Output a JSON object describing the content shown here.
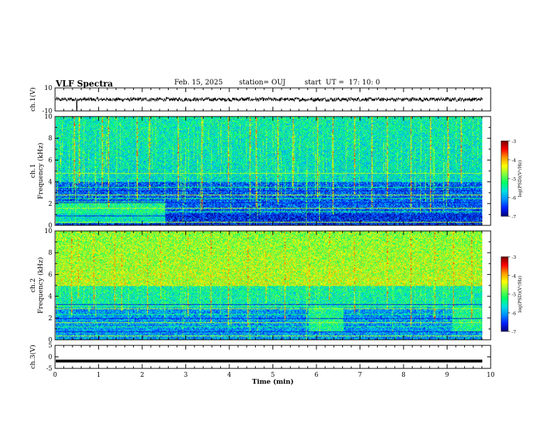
{
  "header": {
    "title": "VLF Spectra",
    "date": "Feb. 15, 2025",
    "station": "station= OUJ",
    "start": "start  UT =  17: 10: 0"
  },
  "colorbar": {
    "label": "log(PSD)(V²/Hz)",
    "ticks": [
      "-3",
      "-4",
      "-5",
      "-6",
      "-7"
    ],
    "colors": [
      "#7a0000",
      "#ff0000",
      "#ff9a00",
      "#ffff00",
      "#7fff3f",
      "#00ff66",
      "#00e0e0",
      "#0090ff",
      "#0020ff",
      "#00007a"
    ]
  },
  "chart_data": [
    {
      "type": "line",
      "panel": "ch.1 waveform",
      "ylabel": "ch.1(V)",
      "yticks": [
        "10",
        "-10"
      ],
      "ylim": [
        -10,
        10
      ],
      "xlim": [
        0,
        10
      ],
      "trace": "noisy signal centered near 0 V, amplitude about ±2 V, one spike to about -10 V near 0.5 min",
      "color": "#000000"
    },
    {
      "type": "heatmap",
      "panel": "ch.1 spectrogram",
      "ylabel": "ch.1\nFrequency (kHz)",
      "yticks": [
        "0",
        "2",
        "4",
        "6",
        "8",
        "10"
      ],
      "ylim": [
        0,
        10
      ],
      "xlim": [
        0,
        9.8
      ],
      "clim": [
        -7,
        -3
      ],
      "z_levels": {
        "below_4kHz": -6.3,
        "4_to_10kHz": -5.6,
        "0_to_2kHz_first_2.5min": -5.3
      },
      "horizontal_lines_kHz": [
        0.3,
        0.9,
        1.3,
        1.6,
        2.1,
        2.5,
        2.8,
        3.2,
        3.5,
        4.8
      ],
      "vertical_burst_min": [
        0.42,
        0.53,
        1.05,
        1.2,
        1.85,
        2.15,
        2.8,
        3.35,
        3.95,
        4.45,
        4.6,
        5.1,
        5.45,
        6.0,
        6.35,
        6.85,
        7.25,
        7.6,
        8.15,
        8.6,
        9.0,
        9.3
      ]
    },
    {
      "type": "heatmap",
      "panel": "ch.2 spectrogram",
      "ylabel": "ch.2\nFrequency (kHz)",
      "yticks": [
        "0",
        "2",
        "4",
        "6",
        "8",
        "10"
      ],
      "ylim": [
        0,
        10
      ],
      "xlim": [
        0,
        9.8
      ],
      "clim": [
        -7,
        -3
      ],
      "z_levels": {
        "below_3kHz": -6.0,
        "3_to_5kHz": -5.4,
        "5_to_10kHz": -4.5,
        "1_to_3kHz_5.8to6.6min_and_9.1to9.8min": -5.3
      },
      "horizontal_lines_kHz": [
        0.4,
        0.8,
        1.2,
        1.6,
        2.0,
        2.4,
        2.9,
        3.3,
        4.5
      ],
      "vertical_burst_min": [
        0.35,
        0.52,
        0.87,
        1.35,
        1.5,
        2.1,
        2.4,
        3.02,
        3.55,
        3.95,
        4.4,
        4.82,
        5.25,
        5.82,
        6.27,
        6.85,
        7.6,
        8.15,
        8.7,
        9.12,
        9.55
      ]
    },
    {
      "type": "line",
      "panel": "ch.3 waveform",
      "ylabel": "ch.3(V)",
      "yticks": [
        "5",
        "0",
        "-5"
      ],
      "ylim": [
        -5,
        5
      ],
      "xlim": [
        0,
        10
      ],
      "y_const": -1.8,
      "color": "#000000"
    }
  ],
  "xaxis": {
    "label": "Time  (min)",
    "ticks": [
      "0",
      "1",
      "2",
      "3",
      "4",
      "5",
      "6",
      "7",
      "8",
      "9",
      "10"
    ]
  }
}
